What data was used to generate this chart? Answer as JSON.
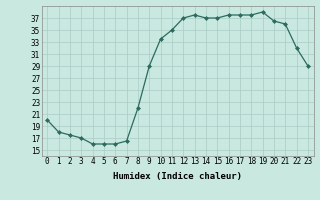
{
  "x": [
    0,
    1,
    2,
    3,
    4,
    5,
    6,
    7,
    8,
    9,
    10,
    11,
    12,
    13,
    14,
    15,
    16,
    17,
    18,
    19,
    20,
    21,
    22,
    23
  ],
  "y": [
    20,
    18,
    17.5,
    17,
    16,
    16,
    16,
    16.5,
    22,
    29,
    33.5,
    35,
    37,
    37.5,
    37,
    37,
    37.5,
    37.5,
    37.5,
    38,
    36.5,
    36,
    32,
    29
  ],
  "line_color": "#2d6b5e",
  "marker": "D",
  "marker_size": 2.0,
  "bg_color": "#c8e8e0",
  "grid_color": "#aaccc4",
  "xlabel": "Humidex (Indice chaleur)",
  "xlim": [
    -0.5,
    23.5
  ],
  "ylim": [
    14,
    39
  ],
  "yticks": [
    15,
    17,
    19,
    21,
    23,
    25,
    27,
    29,
    31,
    33,
    35,
    37
  ],
  "xticks": [
    0,
    1,
    2,
    3,
    4,
    5,
    6,
    7,
    8,
    9,
    10,
    11,
    12,
    13,
    14,
    15,
    16,
    17,
    18,
    19,
    20,
    21,
    22,
    23
  ],
  "label_fontsize": 6.5,
  "tick_fontsize": 5.5
}
